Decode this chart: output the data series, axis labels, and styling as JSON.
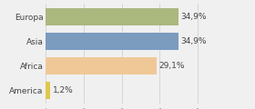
{
  "categories": [
    "Europa",
    "Asia",
    "Africa",
    "America"
  ],
  "values": [
    34.9,
    34.9,
    29.1,
    1.2
  ],
  "labels": [
    "34,9%",
    "34,9%",
    "29,1%",
    "1,2%"
  ],
  "bar_colors": [
    "#aab87e",
    "#7b9bbf",
    "#f0c898",
    "#dfc84a"
  ],
  "background_color": "#f0f0f0",
  "xlim": [
    0,
    43
  ],
  "bar_height": 0.72,
  "label_fontsize": 6.5,
  "tick_fontsize": 6.5,
  "grid_color": "#cccccc",
  "text_color": "#444444"
}
